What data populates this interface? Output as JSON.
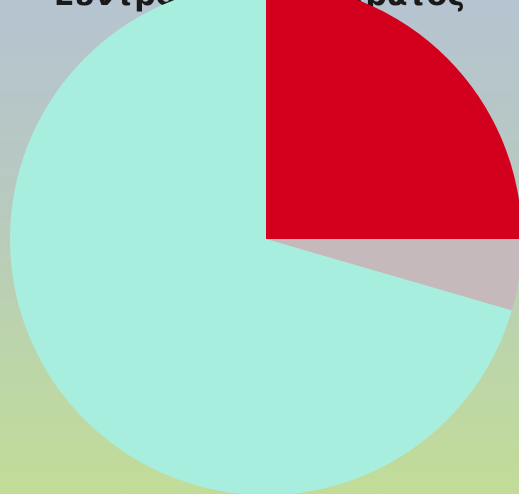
{
  "chart_data": {
    "type": "pie",
    "title": "Συντροφικότητα κράτος",
    "start_angle_deg": 0,
    "direction": "clockwise",
    "slices": [
      {
        "value": 25.0,
        "color": "#d2001c"
      },
      {
        "value": 4.5,
        "color": "#c5b9bc"
      },
      {
        "value": 70.5,
        "color": "#a8eedf"
      }
    ]
  }
}
